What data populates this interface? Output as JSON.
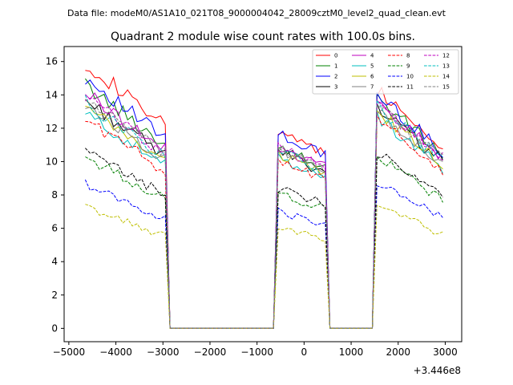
{
  "figure": {
    "suptitle": "Data file: modeM0/AS1A10_021T08_9000004042_28009cztM0_level2_quad_clean.evt"
  },
  "chart_data": {
    "type": "line",
    "title": "Quadrant 2 module wise count rates with 100.0s bins.",
    "xlabel": "",
    "ylabel": "",
    "x_offset_label": "+3.446e8",
    "xlim": [
      -5100,
      3350
    ],
    "ylim": [
      -0.8,
      16.9
    ],
    "x_ticks": [
      -5000,
      -4000,
      -3000,
      -2000,
      -1000,
      0,
      1000,
      2000,
      3000
    ],
    "x_tick_labels": [
      "−5000",
      "−4000",
      "−3000",
      "−2000",
      "−1000",
      "0",
      "1000",
      "2000",
      "3000"
    ],
    "y_ticks": [
      0,
      2,
      4,
      6,
      8,
      10,
      12,
      14,
      16
    ],
    "y_tick_labels": [
      "0",
      "2",
      "4",
      "6",
      "8",
      "10",
      "12",
      "14",
      "16"
    ],
    "grid": false,
    "legend_position": "top-right",
    "legend_columns": 4,
    "segments": [
      {
        "start": -4650,
        "end": -2950
      },
      {
        "start": -550,
        "end": 450
      },
      {
        "start": 1550,
        "end": 2950
      }
    ],
    "series": [
      {
        "name": "0",
        "color": "#ff0000",
        "dash": "solid",
        "levels": [
          14.0,
          11.2,
          12.6
        ]
      },
      {
        "name": "1",
        "color": "#008000",
        "dash": "solid",
        "levels": [
          12.8,
          10.4,
          12.1
        ]
      },
      {
        "name": "2",
        "color": "#0000ff",
        "dash": "solid",
        "levels": [
          13.2,
          11.0,
          12.3
        ]
      },
      {
        "name": "3",
        "color": "#000000",
        "dash": "solid",
        "levels": [
          12.0,
          10.0,
          11.6
        ]
      },
      {
        "name": "4",
        "color": "#bf00bf",
        "dash": "solid",
        "levels": [
          12.4,
          10.3,
          11.9
        ]
      },
      {
        "name": "5",
        "color": "#00bfbf",
        "dash": "solid",
        "levels": [
          11.3,
          9.6,
          11.1
        ]
      },
      {
        "name": "6",
        "color": "#bfbf00",
        "dash": "solid",
        "levels": [
          11.6,
          9.9,
          11.4
        ]
      },
      {
        "name": "7",
        "color": "#808080",
        "dash": "solid",
        "levels": [
          11.8,
          10.1,
          11.5
        ]
      },
      {
        "name": "8",
        "color": "#ff0000",
        "dash": "dashed",
        "levels": [
          11.0,
          9.4,
          11.0
        ]
      },
      {
        "name": "9",
        "color": "#008000",
        "dash": "dashed",
        "levels": [
          9.0,
          7.6,
          9.0
        ]
      },
      {
        "name": "10",
        "color": "#0000ff",
        "dash": "dashed",
        "levels": [
          7.6,
          6.6,
          7.7
        ]
      },
      {
        "name": "11",
        "color": "#000000",
        "dash": "dashed",
        "levels": [
          9.3,
          7.9,
          9.2
        ]
      },
      {
        "name": "12",
        "color": "#bf00bf",
        "dash": "dashed",
        "levels": [
          12.2,
          10.2,
          11.8
        ]
      },
      {
        "name": "13",
        "color": "#00bfbf",
        "dash": "dashed",
        "levels": [
          11.9,
          10.0,
          11.7
        ]
      },
      {
        "name": "14",
        "color": "#bfbf00",
        "dash": "dashed",
        "levels": [
          6.4,
          5.7,
          6.5
        ]
      },
      {
        "name": "15",
        "color": "#808080",
        "dash": "dashed",
        "levels": [
          12.1,
          10.1,
          11.8
        ]
      }
    ]
  }
}
